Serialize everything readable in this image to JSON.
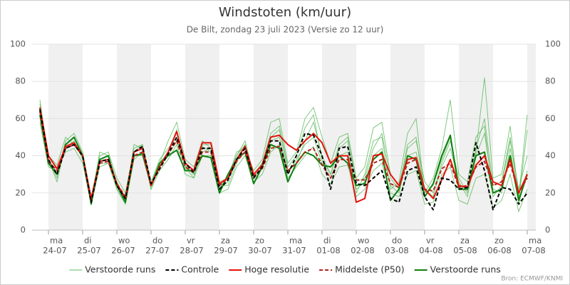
{
  "chart_data": {
    "type": "line",
    "title": "Windstoten (km/uur)",
    "subtitle": "De Bilt, zondag 23 juli 2023 (Versie zo 12 uur)",
    "source": "Bron: ECMWF/KNMI",
    "ylim": [
      0,
      100
    ],
    "yticks": [
      0,
      20,
      40,
      60,
      80,
      100
    ],
    "grid": true,
    "legend": "bottom",
    "categories": [
      null,
      {
        "day": "ma",
        "date": "24-07"
      },
      null,
      null,
      null,
      {
        "day": "di",
        "date": "25-07"
      },
      null,
      null,
      null,
      {
        "day": "wo",
        "date": "26-07"
      },
      null,
      null,
      null,
      {
        "day": "do",
        "date": "27-07"
      },
      null,
      null,
      null,
      {
        "day": "vr",
        "date": "28-07"
      },
      null,
      null,
      null,
      {
        "day": "za",
        "date": "29-07"
      },
      null,
      null,
      null,
      {
        "day": "zo",
        "date": "30-07"
      },
      null,
      null,
      null,
      {
        "day": "ma",
        "date": "31-07"
      },
      null,
      null,
      null,
      {
        "day": "di",
        "date": "01-08"
      },
      null,
      null,
      null,
      {
        "day": "wo",
        "date": "02-08"
      },
      null,
      null,
      null,
      {
        "day": "do",
        "date": "03-08"
      },
      null,
      null,
      null,
      {
        "day": "vr",
        "date": "04-08"
      },
      null,
      null,
      null,
      {
        "day": "za",
        "date": "05-08"
      },
      null,
      null,
      null,
      {
        "day": "zo",
        "date": "06-08"
      },
      null,
      null,
      null,
      {
        "day": "ma",
        "date": "07-08"
      }
    ],
    "members": {
      "name": "Verstoorde runs",
      "color": "#5cb85c",
      "runs": [
        [
          70,
          38,
          28,
          48,
          52,
          42,
          18,
          40,
          42,
          28,
          20,
          44,
          46,
          26,
          38,
          44,
          50,
          35,
          30,
          45,
          42,
          22,
          26,
          40,
          48,
          30,
          36,
          52,
          56,
          34,
          40,
          55,
          62,
          38,
          30,
          44,
          48,
          20,
          30,
          48,
          50,
          22,
          26,
          52,
          60,
          20,
          28,
          44,
          70,
          30,
          26,
          50,
          56,
          18,
          24,
          48,
          22,
          40
        ],
        [
          58,
          34,
          32,
          42,
          44,
          36,
          14,
          34,
          36,
          22,
          14,
          38,
          42,
          22,
          32,
          38,
          46,
          30,
          28,
          40,
          40,
          20,
          22,
          34,
          40,
          26,
          30,
          42,
          46,
          28,
          34,
          40,
          45,
          30,
          25,
          34,
          35,
          18,
          22,
          32,
          36,
          20,
          18,
          30,
          32,
          14,
          15,
          30,
          34,
          16,
          14,
          28,
          30,
          12,
          16,
          30,
          10,
          22
        ],
        [
          66,
          40,
          35,
          50,
          46,
          40,
          16,
          42,
          40,
          26,
          16,
          46,
          44,
          24,
          36,
          48,
          58,
          38,
          34,
          48,
          44,
          26,
          28,
          42,
          44,
          32,
          38,
          58,
          60,
          36,
          42,
          60,
          66,
          50,
          36,
          50,
          52,
          28,
          34,
          55,
          58,
          30,
          24,
          44,
          48,
          26,
          20,
          36,
          48,
          28,
          20,
          42,
          82,
          28,
          30,
          56,
          18,
          62
        ],
        [
          64,
          36,
          30,
          44,
          48,
          38,
          14,
          36,
          36,
          24,
          16,
          40,
          40,
          24,
          34,
          40,
          48,
          34,
          30,
          42,
          44,
          24,
          24,
          36,
          46,
          28,
          34,
          48,
          50,
          30,
          38,
          46,
          50,
          36,
          28,
          40,
          42,
          22,
          26,
          40,
          44,
          24,
          20,
          40,
          42,
          22,
          18,
          34,
          44,
          26,
          18,
          40,
          52,
          22,
          20,
          44,
          14,
          32
        ],
        [
          68,
          38,
          26,
          46,
          50,
          40,
          15,
          38,
          40,
          22,
          14,
          42,
          46,
          22,
          36,
          42,
          54,
          34,
          28,
          46,
          46,
          22,
          30,
          40,
          46,
          30,
          36,
          50,
          54,
          32,
          36,
          48,
          58,
          40,
          30,
          46,
          50,
          26,
          28,
          44,
          52,
          28,
          22,
          46,
          50,
          20,
          24,
          38,
          50,
          24,
          22,
          44,
          60,
          24,
          26,
          50,
          16,
          54
        ]
      ]
    },
    "series": [
      {
        "name": "Controle",
        "color": "#000000",
        "dash": true,
        "values": [
          65,
          38,
          30,
          44,
          46,
          40,
          15,
          37,
          38,
          24,
          17,
          42,
          45,
          25,
          33,
          41,
          50,
          36,
          31,
          44,
          44,
          22,
          27,
          38,
          44,
          28,
          34,
          48,
          48,
          30,
          40,
          52,
          51,
          40,
          22,
          44,
          45,
          25,
          24,
          28,
          32,
          17,
          15,
          32,
          34,
          18,
          11,
          28,
          27,
          22,
          23,
          47,
          32,
          11,
          23,
          22,
          14,
          20
        ]
      },
      {
        "name": "Hoge resolutie",
        "color": "#e3130c",
        "dash": false,
        "values": [
          66,
          40,
          33,
          45,
          47,
          40,
          17,
          37,
          38,
          25,
          17,
          42,
          44,
          24,
          34,
          42,
          53,
          36,
          32,
          47,
          47,
          25,
          28,
          38,
          45,
          30,
          35,
          50,
          51,
          46,
          43,
          48,
          52,
          47,
          36,
          40,
          40,
          15,
          17,
          40,
          41,
          30,
          24,
          38,
          39,
          22,
          17,
          27,
          38,
          24,
          23,
          35,
          40,
          26,
          24,
          38,
          20,
          30
        ]
      },
      {
        "name": "Middelste (P50)",
        "color": "#b3241c",
        "dash": true,
        "values": [
          64,
          37,
          32,
          44,
          46,
          40,
          16,
          36,
          37,
          25,
          18,
          40,
          42,
          25,
          33,
          41,
          48,
          34,
          31,
          42,
          42,
          24,
          28,
          37,
          42,
          29,
          33,
          44,
          45,
          32,
          36,
          42,
          44,
          35,
          28,
          38,
          38,
          27,
          27,
          36,
          38,
          25,
          23,
          36,
          38,
          22,
          21,
          33,
          36,
          23,
          24,
          34,
          37,
          24,
          26,
          36,
          20,
          28
        ]
      },
      {
        "name": "Verstoorde runs",
        "color": "#0e800e",
        "dash": false,
        "values": [
          62,
          36,
          30,
          46,
          50,
          40,
          14,
          38,
          40,
          24,
          15,
          40,
          41,
          24,
          36,
          40,
          43,
          32,
          32,
          40,
          39,
          20,
          30,
          38,
          42,
          25,
          34,
          46,
          44,
          26,
          36,
          42,
          40,
          35,
          34,
          40,
          36,
          24,
          25,
          38,
          42,
          16,
          22,
          40,
          38,
          18,
          25,
          40,
          51,
          22,
          22,
          40,
          42,
          20,
          22,
          40,
          16,
          30
        ]
      }
    ]
  }
}
